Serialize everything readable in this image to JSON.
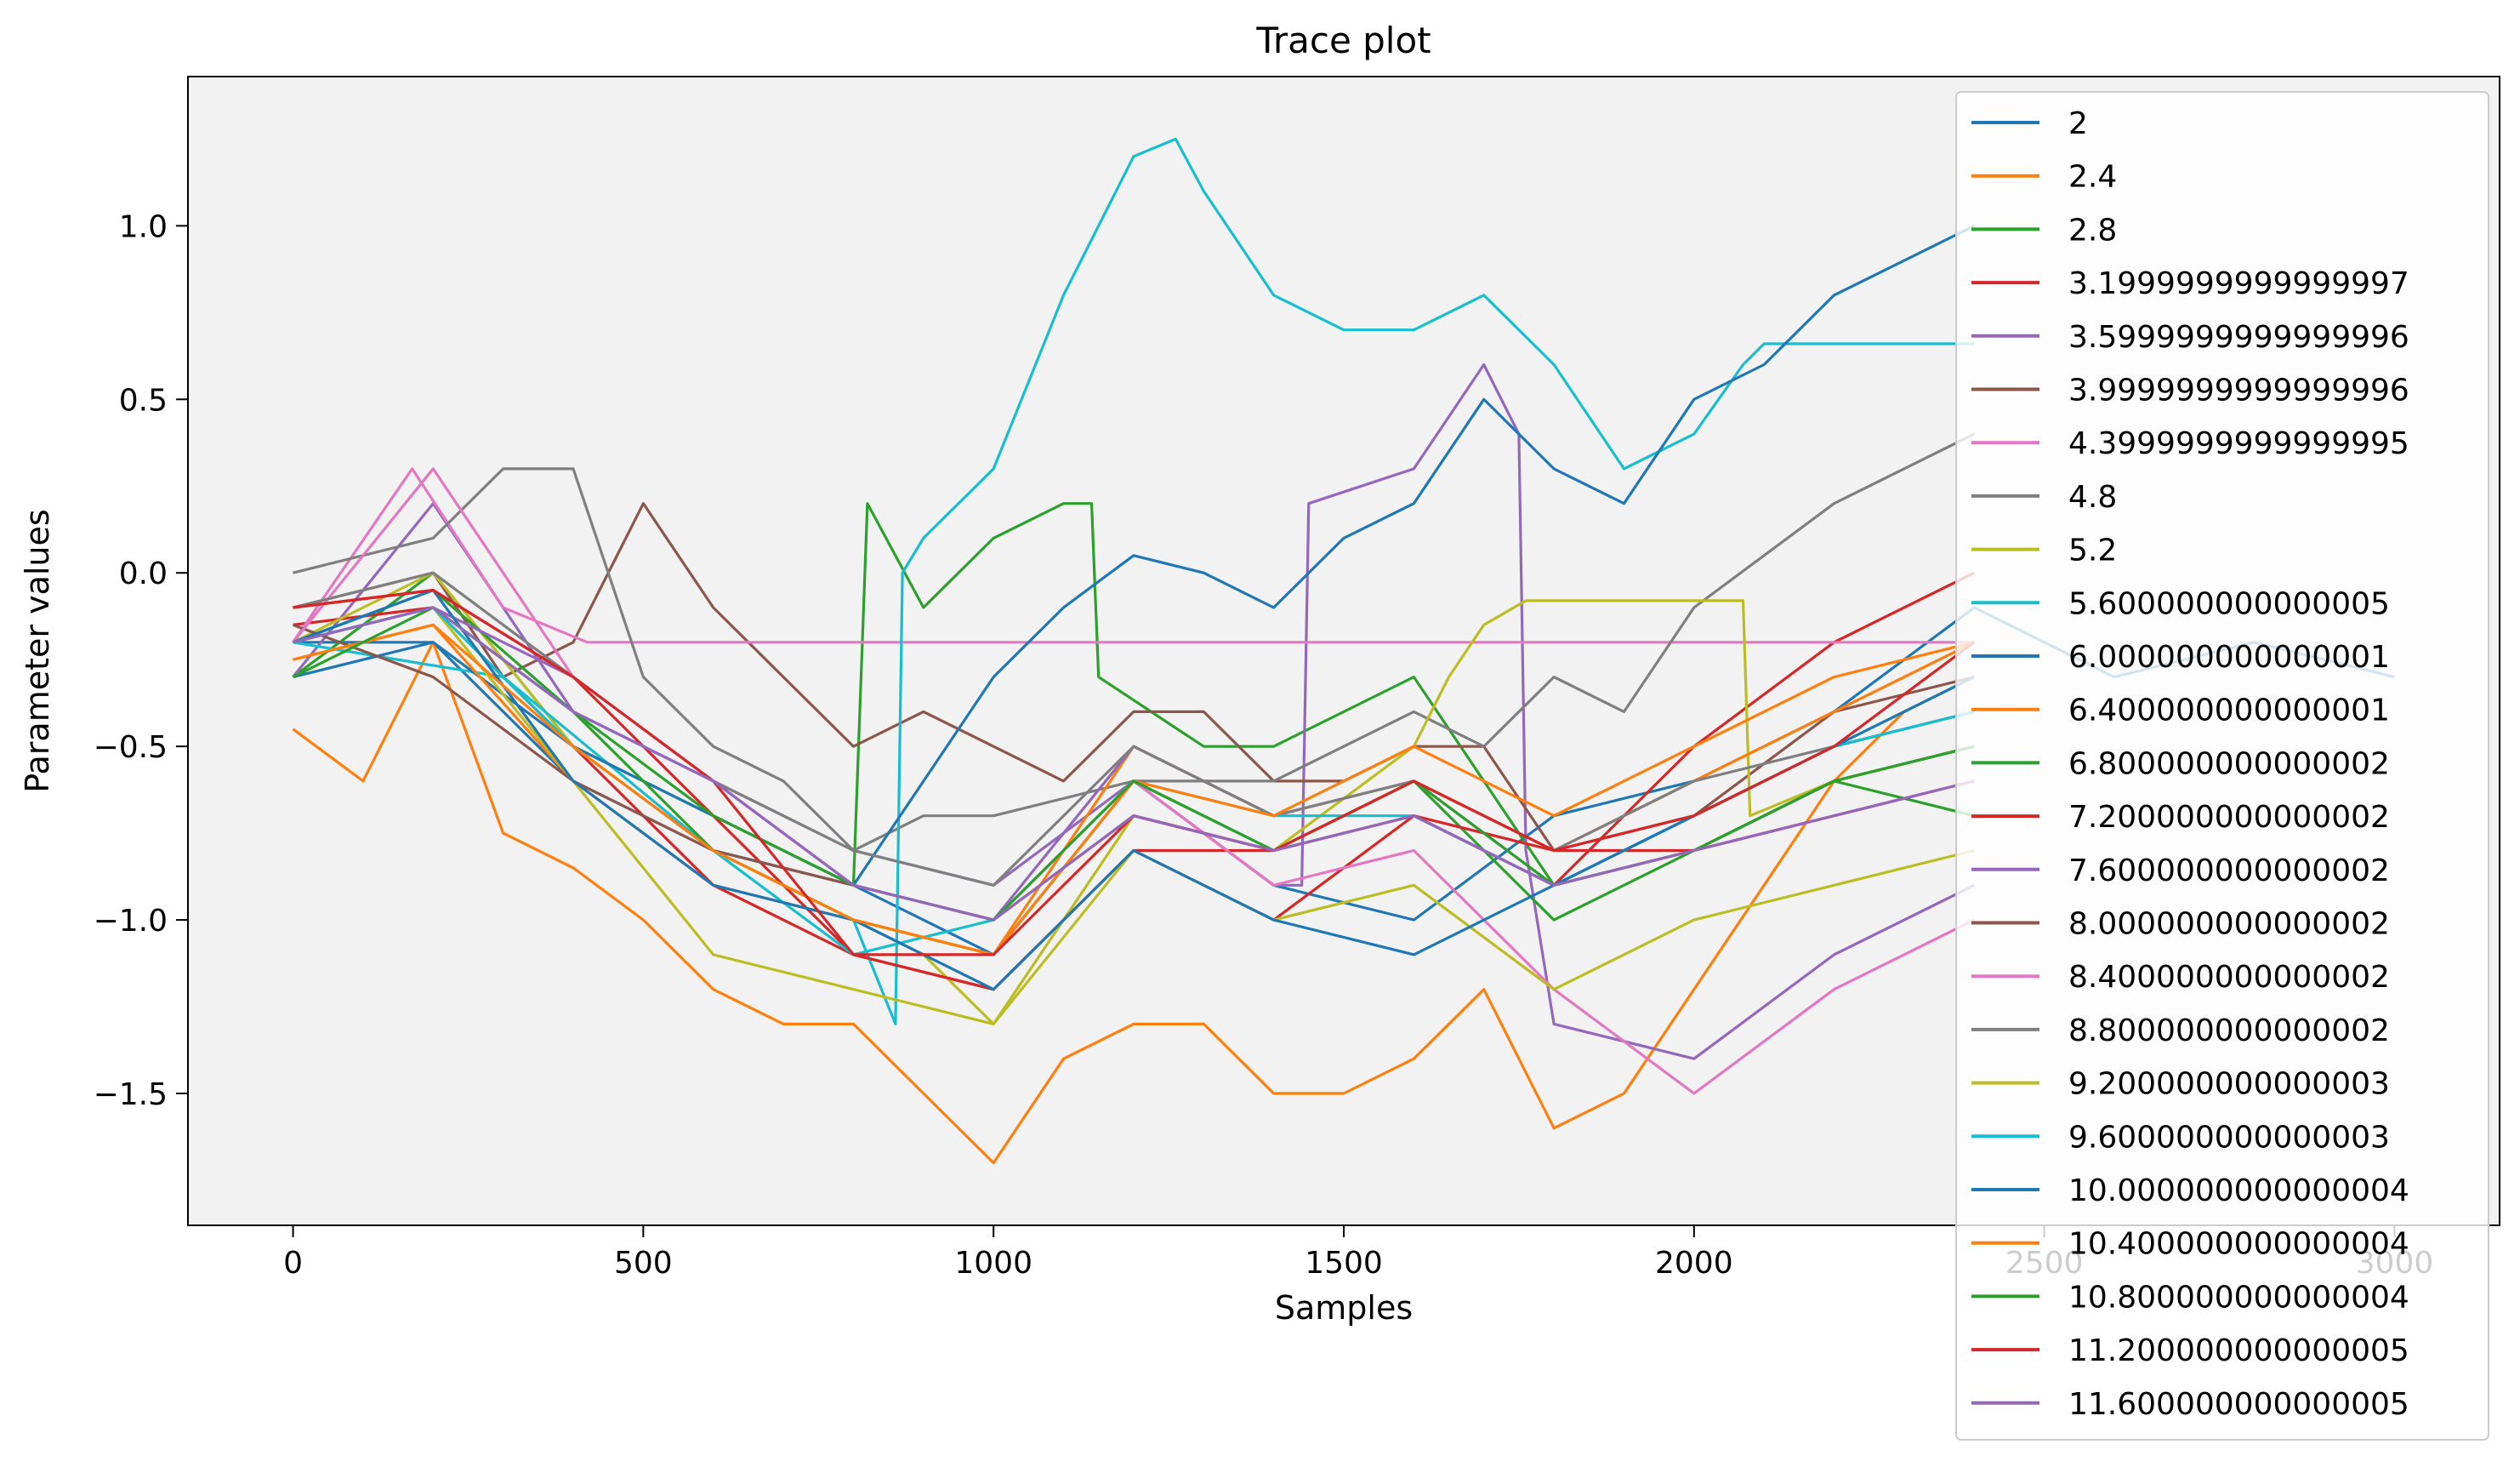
{
  "chart_data": {
    "type": "line",
    "title": "Trace plot",
    "xlabel": "Samples",
    "ylabel": "Parameter values",
    "xlim": [
      -150,
      3150
    ],
    "ylim": [
      -1.88,
      1.43
    ],
    "xticks": [
      0,
      500,
      1000,
      1500,
      2000,
      2500,
      3000
    ],
    "xtick_labels": [
      "0",
      "500",
      "1000",
      "1500",
      "2000",
      "2500",
      "3000"
    ],
    "yticks": [
      -1.5,
      -1.0,
      -0.5,
      0.0,
      0.5,
      1.0
    ],
    "ytick_labels": [
      "−1.5",
      "−1.0",
      "−0.5",
      "0.0",
      "0.5",
      "1.0"
    ],
    "grid": false,
    "background": "#f2f2f2",
    "legend_position": "top-right",
    "series": [
      {
        "name": "2",
        "color": "#1f77b4",
        "x": [
          0,
          200,
          400,
          600,
          800,
          1000,
          1200,
          1400,
          1600,
          1800,
          2000,
          2200,
          2400,
          2600,
          2800,
          3000
        ],
        "y": [
          -0.2,
          -0.2,
          -0.6,
          -0.8,
          -0.9,
          -1.1,
          -0.6,
          -0.9,
          -1.0,
          -0.7,
          -0.6,
          -0.4,
          -0.1,
          -0.3,
          -0.2,
          -0.3
        ]
      },
      {
        "name": "2.4",
        "color": "#ff7f0e",
        "x": [
          0,
          100,
          200,
          300,
          400,
          500,
          600,
          700,
          800,
          900,
          1000,
          1100,
          1200,
          1300,
          1400,
          1500,
          1600,
          1700,
          1800,
          1900,
          2000,
          2100,
          2200,
          2300,
          2400
        ],
        "y": [
          -0.45,
          -0.6,
          -0.2,
          -0.75,
          -0.85,
          -1.0,
          -1.2,
          -1.3,
          -1.3,
          -1.5,
          -1.7,
          -1.4,
          -1.3,
          -1.3,
          -1.5,
          -1.5,
          -1.4,
          -1.2,
          -1.6,
          -1.5,
          -1.2,
          -0.9,
          -0.6,
          -0.4,
          -0.3
        ]
      },
      {
        "name": "2.8",
        "color": "#2ca02c",
        "x": [
          0,
          200,
          400,
          600,
          800,
          820,
          900,
          1000,
          1100,
          1140,
          1150,
          1300,
          1400,
          1600,
          1800,
          2000,
          2200,
          2400
        ],
        "y": [
          -0.3,
          0.0,
          -0.5,
          -0.7,
          -0.9,
          0.2,
          -0.1,
          0.1,
          0.2,
          0.2,
          -0.3,
          -0.5,
          -0.5,
          -0.3,
          -0.9,
          -0.8,
          -0.6,
          -0.7
        ]
      },
      {
        "name": "3.1999999999999997",
        "color": "#d62728",
        "x": [
          0,
          200,
          400,
          600,
          800,
          1000,
          1200,
          1400,
          1600,
          1800,
          2000,
          2200,
          2400
        ],
        "y": [
          -0.15,
          -0.1,
          -0.5,
          -0.9,
          -1.1,
          -1.2,
          -0.8,
          -1.0,
          -0.7,
          -0.9,
          -0.5,
          -0.2,
          0.0
        ]
      },
      {
        "name": "3.5999999999999996",
        "color": "#9467bd",
        "x": [
          0,
          200,
          400,
          600,
          800,
          1000,
          1200,
          1400,
          1440,
          1450,
          1600,
          1700,
          1750,
          1760,
          1800,
          2000,
          2200,
          2400
        ],
        "y": [
          -0.3,
          0.2,
          -0.4,
          -0.6,
          -0.8,
          -0.9,
          -0.6,
          -0.9,
          -0.9,
          0.2,
          0.3,
          0.6,
          0.4,
          -0.8,
          -1.3,
          -1.4,
          -1.1,
          -0.9
        ]
      },
      {
        "name": "3.9999999999999996",
        "color": "#8c564b",
        "x": [
          0,
          200,
          300,
          400,
          500,
          600,
          700,
          800,
          900,
          1000,
          1100,
          1200,
          1300,
          1400,
          1500,
          1600,
          1700,
          1800,
          2000,
          2200,
          2400
        ],
        "y": [
          -0.1,
          0.0,
          -0.3,
          -0.2,
          0.2,
          -0.1,
          -0.3,
          -0.5,
          -0.4,
          -0.5,
          -0.6,
          -0.4,
          -0.4,
          -0.6,
          -0.6,
          -0.5,
          -0.5,
          -0.8,
          -0.7,
          -0.4,
          -0.3
        ]
      },
      {
        "name": "4.3999999999999995",
        "color": "#e377c2",
        "x": [
          0,
          170,
          300,
          420,
          450,
          800,
          1000,
          1200,
          1400,
          1600,
          1800,
          2000,
          2200,
          2400
        ],
        "y": [
          -0.2,
          0.3,
          -0.1,
          -0.2,
          -0.2,
          -0.2,
          -0.2,
          -0.2,
          -0.2,
          -0.2,
          -0.2,
          -0.2,
          -0.2,
          -0.2
        ]
      },
      {
        "name": "4.8",
        "color": "#7f7f7f",
        "x": [
          0,
          200,
          300,
          400,
          500,
          600,
          700,
          800,
          900,
          1000,
          1200,
          1400,
          1600,
          1700,
          1800,
          1900,
          2000,
          2200,
          2400
        ],
        "y": [
          0.0,
          0.1,
          0.3,
          0.3,
          -0.3,
          -0.5,
          -0.6,
          -0.8,
          -0.7,
          -0.7,
          -0.6,
          -0.6,
          -0.4,
          -0.5,
          -0.3,
          -0.4,
          -0.1,
          0.2,
          0.4
        ]
      },
      {
        "name": "5.2",
        "color": "#bcbd22",
        "x": [
          0,
          200,
          400,
          600,
          800,
          900,
          1000,
          1200,
          1400,
          1600,
          1650,
          1700,
          1760,
          2000,
          2070,
          2080,
          2200,
          2400
        ],
        "y": [
          -0.2,
          0.0,
          -0.5,
          -0.8,
          -1.0,
          -1.1,
          -1.3,
          -0.7,
          -0.8,
          -0.5,
          -0.3,
          -0.15,
          -0.08,
          -0.08,
          -0.08,
          -0.7,
          -0.6,
          -0.5
        ]
      },
      {
        "name": "5.600000000000005",
        "color": "#17becf",
        "x": [
          0,
          300,
          600,
          800,
          860,
          870,
          900,
          1000,
          1100,
          1200,
          1260,
          1300,
          1400,
          1500,
          1600,
          1700,
          1800,
          1900,
          2000,
          2070,
          2100,
          2400
        ],
        "y": [
          -0.2,
          -0.3,
          -0.8,
          -1.0,
          -1.3,
          0.0,
          0.1,
          0.3,
          0.8,
          1.2,
          1.25,
          1.1,
          0.8,
          0.7,
          0.7,
          0.8,
          0.6,
          0.3,
          0.4,
          0.6,
          0.66,
          0.66
        ]
      },
      {
        "name": "6.000000000000001",
        "color": "#1f77b4",
        "x": [
          0,
          200,
          400,
          600,
          800,
          1000,
          1100,
          1200,
          1300,
          1400,
          1500,
          1600,
          1700,
          1800,
          1900,
          2000,
          2100,
          2200,
          2300,
          2400
        ],
        "y": [
          -0.3,
          -0.2,
          -0.5,
          -0.7,
          -0.9,
          -0.3,
          -0.1,
          0.05,
          0.0,
          -0.1,
          0.1,
          0.2,
          0.5,
          0.3,
          0.2,
          0.5,
          0.6,
          0.8,
          0.9,
          1.0
        ]
      },
      {
        "name": "6.400000000000001",
        "color": "#ff7f0e",
        "x": [
          0,
          200,
          400,
          600,
          800,
          1000,
          1200,
          1400,
          1600,
          1800,
          2000,
          2200,
          2400
        ],
        "y": [
          -0.25,
          -0.15,
          -0.6,
          -0.9,
          -1.0,
          -1.1,
          -0.5,
          -0.7,
          -0.6,
          -0.8,
          -0.6,
          -0.4,
          -0.2
        ]
      },
      {
        "name": "6.800000000000002",
        "color": "#2ca02c",
        "x": [
          0,
          200,
          400,
          600,
          800,
          1000,
          1200,
          1400,
          1600,
          1800,
          2000,
          2200,
          2400
        ],
        "y": [
          -0.2,
          -0.05,
          -0.4,
          -0.8,
          -1.0,
          -1.1,
          -0.6,
          -0.8,
          -0.6,
          -1.0,
          -0.8,
          -0.6,
          -0.5
        ]
      },
      {
        "name": "7.200000000000002",
        "color": "#d62728",
        "x": [
          0,
          200,
          400,
          600,
          800,
          1000,
          1200,
          1400,
          1600,
          1800,
          2000,
          2200,
          2400
        ],
        "y": [
          -0.1,
          -0.05,
          -0.3,
          -0.7,
          -1.1,
          -1.2,
          -0.8,
          -0.8,
          -0.7,
          -0.8,
          -0.8,
          -0.7,
          -0.6
        ]
      },
      {
        "name": "7.600000000000002",
        "color": "#9467bd",
        "x": [
          0,
          200,
          400,
          600,
          800,
          1000,
          1200,
          1400,
          1600,
          1800,
          2000,
          2200,
          2400
        ],
        "y": [
          -0.2,
          -0.1,
          -0.3,
          -0.6,
          -0.9,
          -1.0,
          -0.5,
          -0.7,
          -0.6,
          -0.9,
          -0.7,
          -0.5,
          -0.4
        ]
      },
      {
        "name": "8.000000000000002",
        "color": "#8c564b",
        "x": [
          0,
          200,
          400,
          600,
          800,
          1000,
          1200,
          1400,
          1600,
          1800,
          2000,
          2200,
          2400
        ],
        "y": [
          -0.15,
          -0.3,
          -0.6,
          -0.8,
          -0.9,
          -1.0,
          -0.7,
          -0.8,
          -0.7,
          -0.9,
          -0.8,
          -0.6,
          -0.5
        ]
      },
      {
        "name": "8.400000000000002",
        "color": "#e377c2",
        "x": [
          0,
          200,
          400,
          600,
          800,
          1000,
          1200,
          1400,
          1600,
          1800,
          2000,
          2200,
          2400
        ],
        "y": [
          -0.2,
          0.3,
          -0.3,
          -0.6,
          -0.9,
          -1.0,
          -0.6,
          -0.9,
          -0.8,
          -1.2,
          -1.5,
          -1.2,
          -1.0
        ]
      },
      {
        "name": "8.800000000000002",
        "color": "#7f7f7f",
        "x": [
          0,
          200,
          400,
          600,
          800,
          1000,
          1200,
          1400,
          1600,
          1800,
          2000,
          2200,
          2400
        ],
        "y": [
          -0.1,
          0.0,
          -0.3,
          -0.6,
          -0.8,
          -0.9,
          -0.5,
          -0.7,
          -0.6,
          -0.8,
          -0.6,
          -0.5,
          -0.4
        ]
      },
      {
        "name": "9.200000000000003",
        "color": "#bcbd22",
        "x": [
          0,
          200,
          400,
          600,
          800,
          1000,
          1200,
          1400,
          1600,
          1800,
          2000,
          2200,
          2400
        ],
        "y": [
          -0.2,
          -0.1,
          -0.6,
          -1.1,
          -1.2,
          -1.3,
          -0.8,
          -1.0,
          -0.9,
          -1.2,
          -1.0,
          -0.9,
          -0.8
        ]
      },
      {
        "name": "9.600000000000003",
        "color": "#17becf",
        "x": [
          0,
          200,
          400,
          600,
          800,
          1000,
          1200,
          1400,
          1600,
          1800,
          2000,
          2200,
          2400
        ],
        "y": [
          -0.2,
          -0.1,
          -0.5,
          -0.8,
          -1.1,
          -1.0,
          -0.6,
          -0.7,
          -0.7,
          -0.9,
          -0.7,
          -0.5,
          -0.4
        ]
      },
      {
        "name": "10.000000000000004",
        "color": "#1f77b4",
        "x": [
          0,
          200,
          400,
          600,
          800,
          1000,
          1200,
          1400,
          1600,
          1800,
          2000,
          2200,
          2400
        ],
        "y": [
          -0.2,
          -0.05,
          -0.6,
          -0.9,
          -1.0,
          -1.2,
          -0.8,
          -1.0,
          -1.1,
          -0.9,
          -0.7,
          -0.5,
          -0.3
        ]
      },
      {
        "name": "10.400000000000004",
        "color": "#ff7f0e",
        "x": [
          0,
          200,
          400,
          600,
          800,
          1000,
          1200,
          1400,
          1600,
          1800,
          2000,
          2200,
          2400
        ],
        "y": [
          -0.25,
          -0.15,
          -0.5,
          -0.8,
          -1.0,
          -1.1,
          -0.6,
          -0.7,
          -0.5,
          -0.7,
          -0.5,
          -0.3,
          -0.2
        ]
      },
      {
        "name": "10.800000000000004",
        "color": "#2ca02c",
        "x": [
          0,
          200,
          400,
          600,
          800,
          1000,
          1200,
          1400,
          1600,
          1800,
          2000,
          2200,
          2400
        ],
        "y": [
          -0.3,
          -0.1,
          -0.4,
          -0.7,
          -0.9,
          -1.0,
          -0.6,
          -0.8,
          -0.6,
          -0.9,
          -0.8,
          -0.6,
          -0.5
        ]
      },
      {
        "name": "11.200000000000005",
        "color": "#d62728",
        "x": [
          0,
          200,
          400,
          600,
          800,
          1000,
          1200,
          1400,
          1600,
          1800,
          2000,
          2200,
          2400
        ],
        "y": [
          -0.1,
          -0.05,
          -0.3,
          -0.6,
          -1.1,
          -1.1,
          -0.7,
          -0.8,
          -0.6,
          -0.8,
          -0.7,
          -0.5,
          -0.2
        ]
      },
      {
        "name": "11.600000000000005",
        "color": "#9467bd",
        "x": [
          0,
          200,
          400,
          600,
          800,
          1000,
          1200,
          1400,
          1600,
          1800,
          2000,
          2200,
          2400
        ],
        "y": [
          -0.2,
          -0.1,
          -0.4,
          -0.6,
          -0.9,
          -1.0,
          -0.7,
          -0.8,
          -0.7,
          -0.9,
          -0.8,
          -0.7,
          -0.6
        ]
      }
    ]
  }
}
